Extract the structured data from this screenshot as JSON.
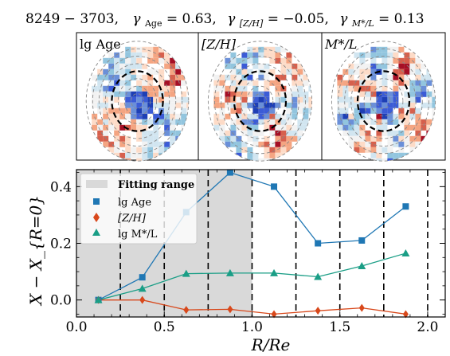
{
  "header": {
    "galaxy_id": "8249 − 3703,",
    "gammas": [
      {
        "sym": "γ",
        "sub": "Age",
        "value": " = 0.63,"
      },
      {
        "sym": "γ",
        "sub": "[Z/H]",
        "value": " = −0.05,"
      },
      {
        "sym": "γ",
        "sub": "M*/L",
        "value": " = 0.13"
      }
    ]
  },
  "maps": [
    {
      "label": "lg Age"
    },
    {
      "label": "[Z/H]"
    },
    {
      "label": "M*/L"
    }
  ],
  "colors": {
    "age": "#1f77b4",
    "metal": "#d8481b",
    "ml": "#1a9e86",
    "shade": "#d9d9d9",
    "ring": "#999999"
  },
  "chart_data": {
    "type": "line",
    "xlabel": "R/Re",
    "ylabel": "X − X_{R=0}",
    "xlim": [
      0.0,
      2.1
    ],
    "ylim": [
      -0.06,
      0.46
    ],
    "xticks": [
      "0.0",
      "0.5",
      "1.0",
      "1.5",
      "2.0"
    ],
    "yticks": [
      "0.0",
      "0.2",
      "0.4"
    ],
    "fitting_range": [
      0.0,
      1.0
    ],
    "fitting_label": "Fitting range",
    "ring_edges": [
      0.25,
      0.5,
      0.75,
      1.0,
      1.25,
      1.5,
      1.75,
      2.0
    ],
    "legend_position": "upper-left",
    "x": [
      0.125,
      0.375,
      0.625,
      0.875,
      1.125,
      1.375,
      1.625,
      1.875
    ],
    "series": [
      {
        "name": "lg Age",
        "marker": "square",
        "color": "#1f77b4",
        "values": [
          0.0,
          0.08,
          0.31,
          0.45,
          0.4,
          0.2,
          0.21,
          0.33
        ]
      },
      {
        "name": "[Z/H]",
        "marker": "diamond",
        "color": "#d8481b",
        "values": [
          0.0,
          0.0,
          -0.035,
          -0.033,
          -0.05,
          -0.038,
          -0.028,
          -0.05
        ]
      },
      {
        "name": "lg M*/L",
        "marker": "triangle",
        "color": "#1a9e86",
        "values": [
          0.0,
          0.04,
          0.093,
          0.095,
          0.095,
          0.082,
          0.12,
          0.165
        ]
      }
    ]
  }
}
